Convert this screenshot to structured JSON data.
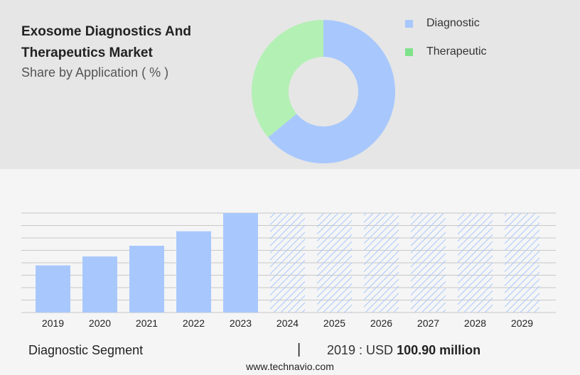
{
  "header": {
    "title": "Exosome Diagnostics And Therapeutics Market",
    "subtitle": "Share by Application ( % )"
  },
  "legend": [
    {
      "label": "Diagnostic",
      "color": "#a8c8fd"
    },
    {
      "label": "Therapeutic",
      "color": "#7ee28a"
    }
  ],
  "chart_data": [
    {
      "type": "pie",
      "title": "Share by Application ( % )",
      "categories": [
        "Diagnostic",
        "Therapeutic"
      ],
      "values": [
        64,
        36
      ],
      "colors": [
        "#a8c8fd",
        "#b3f0b4"
      ],
      "donut": true
    },
    {
      "type": "bar",
      "categories": [
        "2019",
        "2020",
        "2021",
        "2022",
        "2023",
        "2024",
        "2025",
        "2026",
        "2027",
        "2028",
        "2029"
      ],
      "values": [
        100.9,
        120.0,
        143.0,
        174.0,
        213.0,
        null,
        null,
        null,
        null,
        null,
        null
      ],
      "forecast_categories": [
        "2024",
        "2025",
        "2026",
        "2027",
        "2028",
        "2029"
      ],
      "series_name": "Diagnostic Segment",
      "unit": "USD million",
      "bar_color": "#a8c8fd",
      "grid": true
    }
  ],
  "footer": {
    "segment": "Diagnostic Segment",
    "separator": "|",
    "year_prefix": "2019 : USD",
    "value": "100.90 million",
    "website": "www.technavio.com"
  }
}
